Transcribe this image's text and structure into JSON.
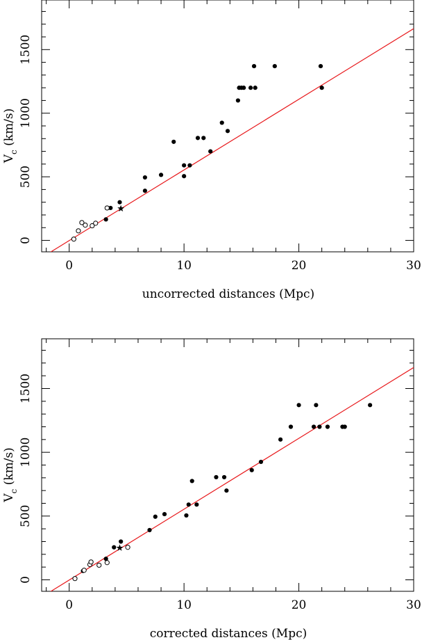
{
  "chart_data": [
    {
      "type": "scatter",
      "xlabel": "uncorrected distances (Mpc)",
      "ylabel_main": "V",
      "ylabel_sub": "c",
      "ylabel_unit": "(km/s)",
      "xlim": [
        -2.4,
        30
      ],
      "ylim": [
        -90,
        1890
      ],
      "x_ticks_major": [
        0,
        10,
        20,
        30
      ],
      "x_ticks_minor_step": 2,
      "y_ticks_major": [
        0,
        500,
        1000,
        1500
      ],
      "y_ticks_minor_step": 100,
      "fit_line": {
        "x": [
          -2.4,
          30
        ],
        "y": [
          -135,
          1665
        ],
        "color": "#e8191c"
      },
      "series": [
        {
          "marker": "filled",
          "points": [
            [
              3.2,
              165
            ],
            [
              3.6,
              255
            ],
            [
              4.4,
              300
            ],
            [
              6.6,
              495
            ],
            [
              6.6,
              390
            ],
            [
              8.0,
              515
            ],
            [
              9.1,
              775
            ],
            [
              10.0,
              590
            ],
            [
              10.0,
              505
            ],
            [
              10.5,
              590
            ],
            [
              11.2,
              805
            ],
            [
              11.7,
              805
            ],
            [
              12.3,
              700
            ],
            [
              13.3,
              925
            ],
            [
              13.8,
              860
            ],
            [
              14.7,
              1100
            ],
            [
              14.8,
              1200
            ],
            [
              15.0,
              1200
            ],
            [
              15.2,
              1200
            ],
            [
              15.8,
              1200
            ],
            [
              16.1,
              1370
            ],
            [
              16.2,
              1200
            ],
            [
              17.9,
              1370
            ],
            [
              21.9,
              1370
            ],
            [
              22.0,
              1200
            ]
          ]
        },
        {
          "marker": "open",
          "points": [
            [
              0.4,
              10
            ],
            [
              0.8,
              75
            ],
            [
              1.1,
              140
            ],
            [
              1.4,
              120
            ],
            [
              2.0,
              115
            ],
            [
              2.3,
              135
            ],
            [
              3.3,
              255
            ]
          ]
        },
        {
          "marker": "star",
          "points": [
            [
              4.5,
              250
            ]
          ]
        }
      ]
    },
    {
      "type": "scatter",
      "xlabel": "corrected distances (Mpc)",
      "ylabel_main": "V",
      "ylabel_sub": "c",
      "ylabel_unit": "(km/s)",
      "xlim": [
        -2.4,
        30
      ],
      "ylim": [
        -90,
        1890
      ],
      "x_ticks_major": [
        0,
        10,
        20,
        30
      ],
      "x_ticks_minor_step": 2,
      "y_ticks_major": [
        0,
        500,
        1000,
        1500
      ],
      "y_ticks_minor_step": 100,
      "fit_line": {
        "x": [
          -2.4,
          30
        ],
        "y": [
          -135,
          1665
        ],
        "color": "#e8191c"
      },
      "series": [
        {
          "marker": "filled",
          "points": [
            [
              1.2,
              70
            ],
            [
              3.2,
              165
            ],
            [
              3.9,
              255
            ],
            [
              4.5,
              300
            ],
            [
              7.0,
              390
            ],
            [
              7.5,
              495
            ],
            [
              8.3,
              515
            ],
            [
              10.2,
              505
            ],
            [
              10.4,
              590
            ],
            [
              10.7,
              775
            ],
            [
              11.1,
              590
            ],
            [
              12.8,
              805
            ],
            [
              13.5,
              805
            ],
            [
              13.7,
              700
            ],
            [
              15.9,
              860
            ],
            [
              16.7,
              925
            ],
            [
              18.4,
              1100
            ],
            [
              19.3,
              1200
            ],
            [
              20.0,
              1370
            ],
            [
              21.3,
              1200
            ],
            [
              21.5,
              1370
            ],
            [
              21.8,
              1200
            ],
            [
              22.5,
              1200
            ],
            [
              23.8,
              1200
            ],
            [
              24.0,
              1200
            ],
            [
              26.2,
              1370
            ]
          ]
        },
        {
          "marker": "open",
          "points": [
            [
              0.5,
              10
            ],
            [
              1.3,
              75
            ],
            [
              1.8,
              120
            ],
            [
              1.9,
              140
            ],
            [
              2.6,
              115
            ],
            [
              3.3,
              135
            ],
            [
              5.1,
              255
            ]
          ]
        },
        {
          "marker": "star",
          "points": [
            [
              4.4,
              250
            ]
          ]
        }
      ]
    }
  ]
}
